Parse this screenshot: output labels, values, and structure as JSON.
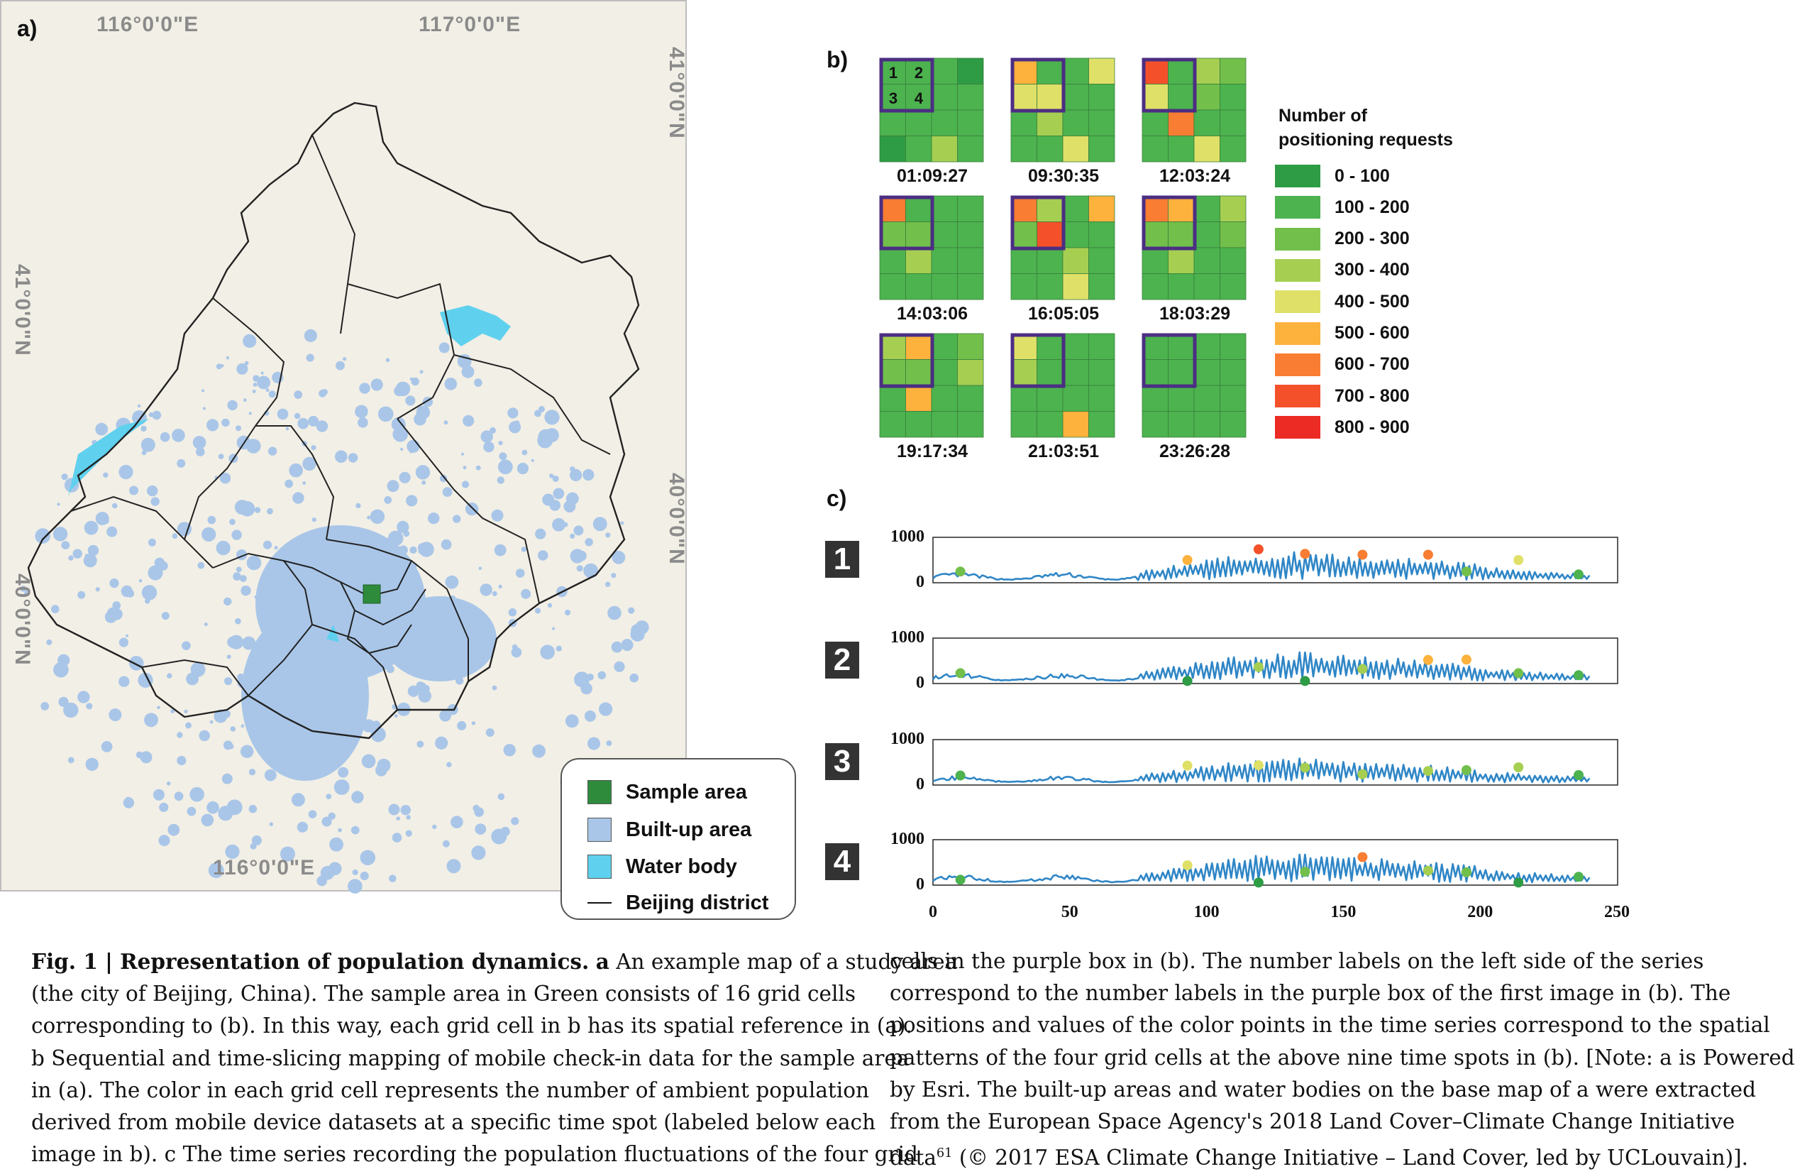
{
  "panel_a": {
    "label": "a)",
    "coords": {
      "top_left_lon": "116°0'0\"E",
      "top_right_lon": "117°0'0\"E",
      "bottom_lon": "116°0'0\"E",
      "left_lat_upper": "41°0'0\"N",
      "left_lat_lower": "40°0'0\"N",
      "right_lat_upper": "41°0'0\"N",
      "right_lat_lower": "40°0'0\"N"
    },
    "legend": [
      {
        "label": "Sample area",
        "color": "#2e8b3c",
        "kind": "swatch"
      },
      {
        "label": "Built-up area",
        "color": "#a9c6e8",
        "kind": "swatch"
      },
      {
        "label": "Water body",
        "color": "#5fd1ee",
        "kind": "swatch"
      },
      {
        "label": "Beijing district",
        "color": "#111111",
        "kind": "line"
      }
    ]
  },
  "panel_b": {
    "label": "b)",
    "cell_numbers": [
      "1",
      "2",
      "3",
      "4"
    ],
    "legend_title_line1": "Number of",
    "legend_title_line2": "positioning requests",
    "legend": [
      {
        "label": "0 - 100",
        "color": "#2e9b45"
      },
      {
        "label": "100 - 200",
        "color": "#4cb34e"
      },
      {
        "label": "200 - 300",
        "color": "#72bf4b"
      },
      {
        "label": "300 - 400",
        "color": "#a6cf52"
      },
      {
        "label": "400 - 500",
        "color": "#dfe067"
      },
      {
        "label": "500 - 600",
        "color": "#fcb23d"
      },
      {
        "label": "600 - 700",
        "color": "#f97d32"
      },
      {
        "label": "700 - 800",
        "color": "#f4512b"
      },
      {
        "label": "800 - 900",
        "color": "#ec2b25"
      }
    ],
    "highlight_color": "#4b2e83",
    "grids": [
      {
        "time": "01:09:27",
        "cells": [
          1,
          1,
          1,
          0,
          1,
          1,
          1,
          1,
          1,
          1,
          1,
          1,
          0,
          1,
          3,
          1
        ]
      },
      {
        "time": "09:30:35",
        "cells": [
          5,
          1,
          1,
          4,
          4,
          4,
          1,
          1,
          1,
          3,
          1,
          1,
          1,
          1,
          4,
          1
        ]
      },
      {
        "time": "12:03:24",
        "cells": [
          7,
          1,
          3,
          2,
          4,
          1,
          2,
          1,
          1,
          6,
          1,
          1,
          1,
          1,
          4,
          1
        ]
      },
      {
        "time": "14:03:06",
        "cells": [
          6,
          1,
          1,
          1,
          2,
          2,
          1,
          1,
          1,
          3,
          1,
          1,
          1,
          1,
          1,
          1
        ]
      },
      {
        "time": "16:05:05",
        "cells": [
          6,
          3,
          1,
          5,
          2,
          7,
          1,
          1,
          1,
          1,
          3,
          1,
          1,
          1,
          4,
          1
        ]
      },
      {
        "time": "18:03:29",
        "cells": [
          6,
          5,
          1,
          3,
          2,
          2,
          1,
          2,
          1,
          3,
          1,
          1,
          1,
          1,
          1,
          1
        ]
      },
      {
        "time": "19:17:34",
        "cells": [
          3,
          5,
          1,
          2,
          2,
          2,
          1,
          3,
          1,
          5,
          1,
          1,
          1,
          1,
          1,
          1
        ]
      },
      {
        "time": "21:03:51",
        "cells": [
          4,
          1,
          1,
          1,
          3,
          1,
          1,
          1,
          1,
          1,
          1,
          1,
          1,
          1,
          5,
          1
        ]
      },
      {
        "time": "23:26:28",
        "cells": [
          1,
          1,
          1,
          1,
          1,
          1,
          1,
          1,
          1,
          1,
          1,
          1,
          1,
          1,
          1,
          1
        ]
      }
    ]
  },
  "panel_c": {
    "label": "c)",
    "y_ticks": [
      "1000",
      "0"
    ],
    "x_ticks": [
      "0",
      "50",
      "100",
      "150",
      "200",
      "250"
    ],
    "line_color": "#2f86c6"
  },
  "chart_data": {
    "type": "line",
    "x_range": [
      0,
      250
    ],
    "y_range": [
      0,
      1000
    ],
    "series": [
      {
        "name": "1",
        "points": [
          [
            10,
            220,
            "#72bf4b"
          ],
          [
            93,
            500,
            "#fcb23d"
          ],
          [
            119,
            760,
            "#f4512b"
          ],
          [
            136,
            650,
            "#f97d32"
          ],
          [
            157,
            630,
            "#f97d32"
          ],
          [
            181,
            630,
            "#f97d32"
          ],
          [
            195,
            220,
            "#72bf4b"
          ],
          [
            214,
            500,
            "#dfe067"
          ],
          [
            236,
            150,
            "#4cb34e"
          ]
        ]
      },
      {
        "name": "2",
        "points": [
          [
            10,
            200,
            "#72bf4b"
          ],
          [
            93,
            10,
            "#2e9b45"
          ],
          [
            119,
            350,
            "#a6cf52"
          ],
          [
            136,
            10,
            "#2e9b45"
          ],
          [
            157,
            300,
            "#a6cf52"
          ],
          [
            181,
            520,
            "#fcb23d"
          ],
          [
            195,
            530,
            "#fcb23d"
          ],
          [
            214,
            200,
            "#72bf4b"
          ],
          [
            236,
            150,
            "#4cb34e"
          ]
        ]
      },
      {
        "name": "3",
        "points": [
          [
            10,
            180,
            "#4cb34e"
          ],
          [
            93,
            420,
            "#dfe067"
          ],
          [
            119,
            430,
            "#dfe067"
          ],
          [
            136,
            370,
            "#a6cf52"
          ],
          [
            157,
            210,
            "#a6cf52"
          ],
          [
            181,
            290,
            "#a6cf52"
          ],
          [
            195,
            310,
            "#72bf4b"
          ],
          [
            214,
            380,
            "#a6cf52"
          ],
          [
            236,
            190,
            "#4cb34e"
          ]
        ]
      },
      {
        "name": "4",
        "points": [
          [
            10,
            80,
            "#4cb34e"
          ],
          [
            93,
            430,
            "#dfe067"
          ],
          [
            119,
            10,
            "#2e9b45"
          ],
          [
            136,
            270,
            "#72bf4b"
          ],
          [
            157,
            630,
            "#f97d32"
          ],
          [
            181,
            300,
            "#a6cf52"
          ],
          [
            195,
            260,
            "#72bf4b"
          ],
          [
            214,
            10,
            "#2e9b45"
          ],
          [
            236,
            150,
            "#4cb34e"
          ]
        ]
      }
    ]
  },
  "caption": {
    "left": [
      {
        "bold": "Fig. 1 | Representation of population dynamics.",
        "rest": ""
      },
      {
        "bold": "a",
        "rest": " An example map of a study area"
      },
      "(the city of Beijing, China). The sample area in Green consists of 16 grid cells",
      "corresponding to (b). In this way, each grid cell in b has its spatial reference in (a).",
      "b Sequential and time-slicing mapping of mobile check-in data for the sample area",
      "in (a). The color in each grid cell represents the number of ambient population",
      "derived from mobile device datasets at a specific time spot (labeled below each",
      "image in b). c The time series recording the population fluctuations of the four grid"
    ],
    "right": [
      "cells in the purple box in (b). The number labels on the left side of the series",
      "correspond to the number labels in the purple box of the first image in (b). The",
      "positions and values of the color points in the time series correspond to the spatial",
      "patterns of the four grid cells at the above nine time spots in (b). [Note: a is Powered",
      "by Esri. The built-up areas and water bodies on the base map of a were extracted",
      "from the European Space Agency's 2018 Land Cover–Climate Change Initiative",
      "data",
      "61",
      " (© 2017 ESA Climate Change Initiative – Land Cover, led by UCLouvain)]."
    ]
  }
}
